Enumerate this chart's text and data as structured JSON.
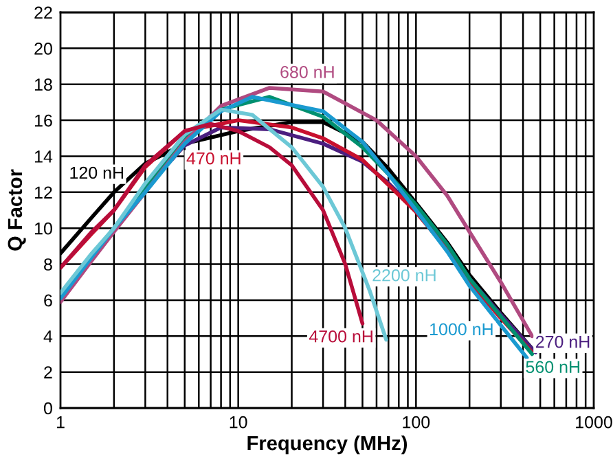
{
  "chart_data": {
    "type": "line",
    "xlabel": "Frequency (MHz)",
    "ylabel": "Q Factor",
    "log": "x",
    "xlim": [
      1,
      1000
    ],
    "xticks": [
      1,
      10,
      100,
      1000
    ],
    "ylim": [
      0,
      22
    ],
    "yticks": [
      0,
      2,
      4,
      6,
      8,
      10,
      12,
      14,
      16,
      18,
      20,
      22
    ],
    "grid": true,
    "legend": false,
    "marker": "none",
    "line_style": "solid",
    "series": [
      {
        "name": "120 nH",
        "color": "#000000",
        "x": [
          1,
          1.5,
          2,
          3,
          5,
          10,
          20,
          30,
          50,
          70,
          100,
          150,
          200,
          300,
          450
        ],
        "values": [
          8.6,
          10.6,
          12,
          13.6,
          14.7,
          15.4,
          15.9,
          15.9,
          14.8,
          13.3,
          11.4,
          9.2,
          7.4,
          5.3,
          3.3
        ]
      },
      {
        "name": "270 nH",
        "color": "#4b1e7f",
        "x": [
          1,
          1.5,
          2,
          3,
          5,
          8,
          15,
          30,
          50,
          70,
          100,
          150,
          200,
          300,
          470
        ],
        "values": [
          6.1,
          8.4,
          10,
          12.2,
          14.6,
          15.6,
          15.5,
          14.7,
          13.7,
          12.5,
          11,
          8.9,
          7.2,
          5.2,
          3.1
        ]
      },
      {
        "name": "470 nH",
        "color": "#c8102e",
        "x": [
          1,
          1.5,
          2,
          3,
          5,
          10,
          20,
          30,
          50,
          70,
          100,
          150,
          200,
          300,
          450
        ],
        "values": [
          7.8,
          9.7,
          11,
          13.4,
          15.4,
          16,
          15.6,
          15,
          13.8,
          12.4,
          10.9,
          8.8,
          7,
          5,
          3.1
        ]
      },
      {
        "name": "560 nH",
        "color": "#009070",
        "x": [
          1,
          1.5,
          2,
          3,
          5,
          8,
          15,
          30,
          50,
          70,
          100,
          150,
          200,
          300,
          450
        ],
        "values": [
          6.2,
          8.5,
          10,
          12.3,
          15,
          16.6,
          17.3,
          16.2,
          14.5,
          13,
          11.3,
          9.1,
          7.2,
          5.1,
          3
        ]
      },
      {
        "name": "680 nH",
        "color": "#b04a80",
        "x": [
          1,
          1.5,
          2,
          3,
          5,
          8,
          15,
          30,
          60,
          100,
          150,
          200,
          300,
          450
        ],
        "values": [
          5.9,
          8.2,
          9.8,
          12,
          14.8,
          16.8,
          17.8,
          17.6,
          16,
          14,
          11.8,
          9.8,
          7,
          4
        ]
      },
      {
        "name": "1000 nH",
        "color": "#1a9ad0",
        "x": [
          1,
          1.5,
          2,
          3,
          5,
          8,
          12,
          30,
          50,
          70,
          100,
          150,
          200,
          300,
          420
        ],
        "values": [
          6.1,
          8.4,
          10,
          12,
          14.7,
          16.5,
          17.3,
          16.5,
          14.8,
          13,
          11,
          8.7,
          6.8,
          4.6,
          2.8
        ]
      },
      {
        "name": "2200 nH",
        "color": "#6cc8d6",
        "x": [
          1,
          1.5,
          2,
          3,
          5,
          8,
          12,
          20,
          30,
          40,
          55,
          68
        ],
        "values": [
          6.4,
          8.6,
          10,
          12.5,
          15.2,
          16.6,
          16.3,
          14.5,
          12.3,
          10,
          6.5,
          3.8
        ]
      },
      {
        "name": "4700 nH",
        "color": "#b80d3a",
        "x": [
          1,
          1.5,
          2,
          3,
          5,
          7,
          10,
          15,
          20,
          30,
          40,
          50
        ],
        "values": [
          7.8,
          9.8,
          11,
          13.5,
          15.4,
          15.8,
          15.4,
          14.5,
          13.5,
          11,
          8,
          4.7
        ]
      }
    ]
  }
}
